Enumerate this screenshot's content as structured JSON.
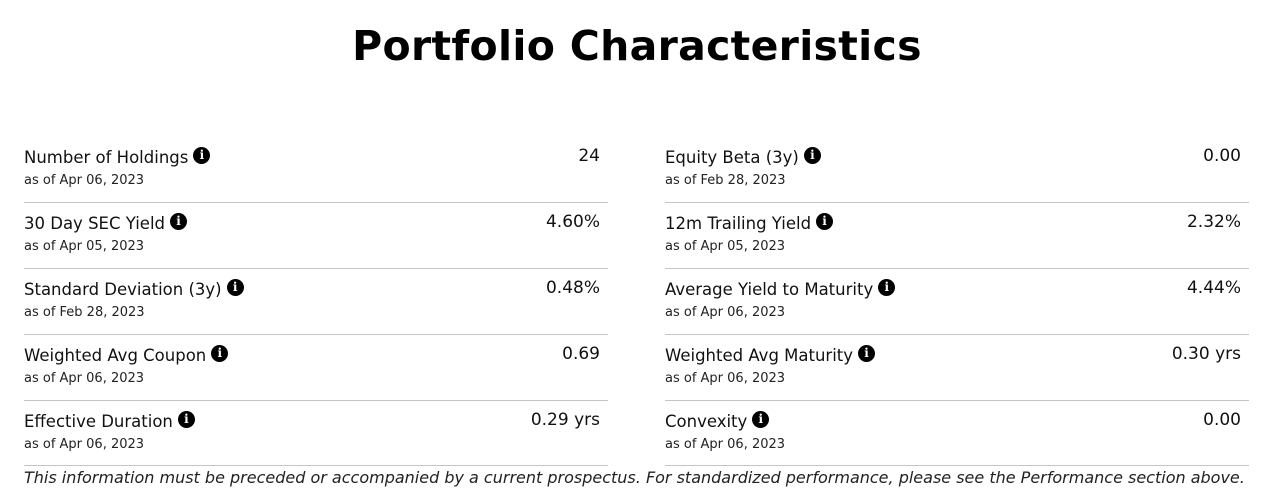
{
  "title": "Portfolio Characteristics",
  "left_column": [
    {
      "label": "Number of Holdings",
      "as_of": "as of Apr 06, 2023",
      "value": "24",
      "icon": "info-icon"
    },
    {
      "label": "30 Day SEC Yield",
      "as_of": "as of Apr 05, 2023",
      "value": "4.60%",
      "icon": "info-icon"
    },
    {
      "label": "Standard Deviation (3y)",
      "as_of": "as of Feb 28, 2023",
      "value": "0.48%",
      "icon": "info-icon"
    },
    {
      "label": "Weighted Avg Coupon",
      "as_of": "as of Apr 06, 2023",
      "value": "0.69",
      "icon": "info-icon"
    },
    {
      "label": "Effective Duration",
      "as_of": "as of Apr 06, 2023",
      "value": "0.29 yrs",
      "icon": "info-icon"
    }
  ],
  "right_column": [
    {
      "label": "Equity Beta (3y)",
      "as_of": "as of Feb 28, 2023",
      "value": "0.00",
      "icon": "info-icon"
    },
    {
      "label": "12m Trailing Yield",
      "as_of": "as of Apr 05, 2023",
      "value": "2.32%",
      "icon": "info-icon"
    },
    {
      "label": "Average Yield to Maturity",
      "as_of": "as of Apr 06, 2023",
      "value": "4.44%",
      "icon": "info-icon"
    },
    {
      "label": "Weighted Avg Maturity",
      "as_of": "as of Apr 06, 2023",
      "value": "0.30 yrs",
      "icon": "info-icon"
    },
    {
      "label": "Convexity",
      "as_of": "as of Apr 06, 2023",
      "value": "0.00",
      "icon": "info-icon"
    }
  ],
  "footnote": "This information must be preceded or accompanied by a current prospectus. For standardized performance, please see the Performance section above.",
  "icon_glyph": "i"
}
